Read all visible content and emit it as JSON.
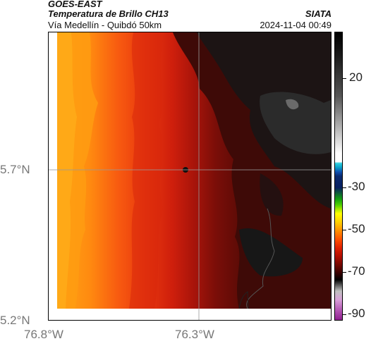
{
  "header": {
    "satellite": "GOES-EAST",
    "product": "Temperatura de Brillo CH13",
    "route": "Vía Medellín - Quibdó 50km",
    "organization": "SIATA",
    "timestamp": "2024-11-04 00:49"
  },
  "axes": {
    "lat_ticks": [
      "5.7°N",
      "5.2°N"
    ],
    "lon_ticks": [
      "76.8°W",
      "76.3°W"
    ]
  },
  "colorbar": {
    "ticks": [
      "20",
      "-30",
      "-50",
      "-70",
      "-90"
    ],
    "range_c": [
      -95,
      40
    ]
  },
  "colors": {
    "warm": "#ff9a10",
    "mid": "#e02a10",
    "dark": "#3a0a06",
    "cloud": "#161616"
  }
}
